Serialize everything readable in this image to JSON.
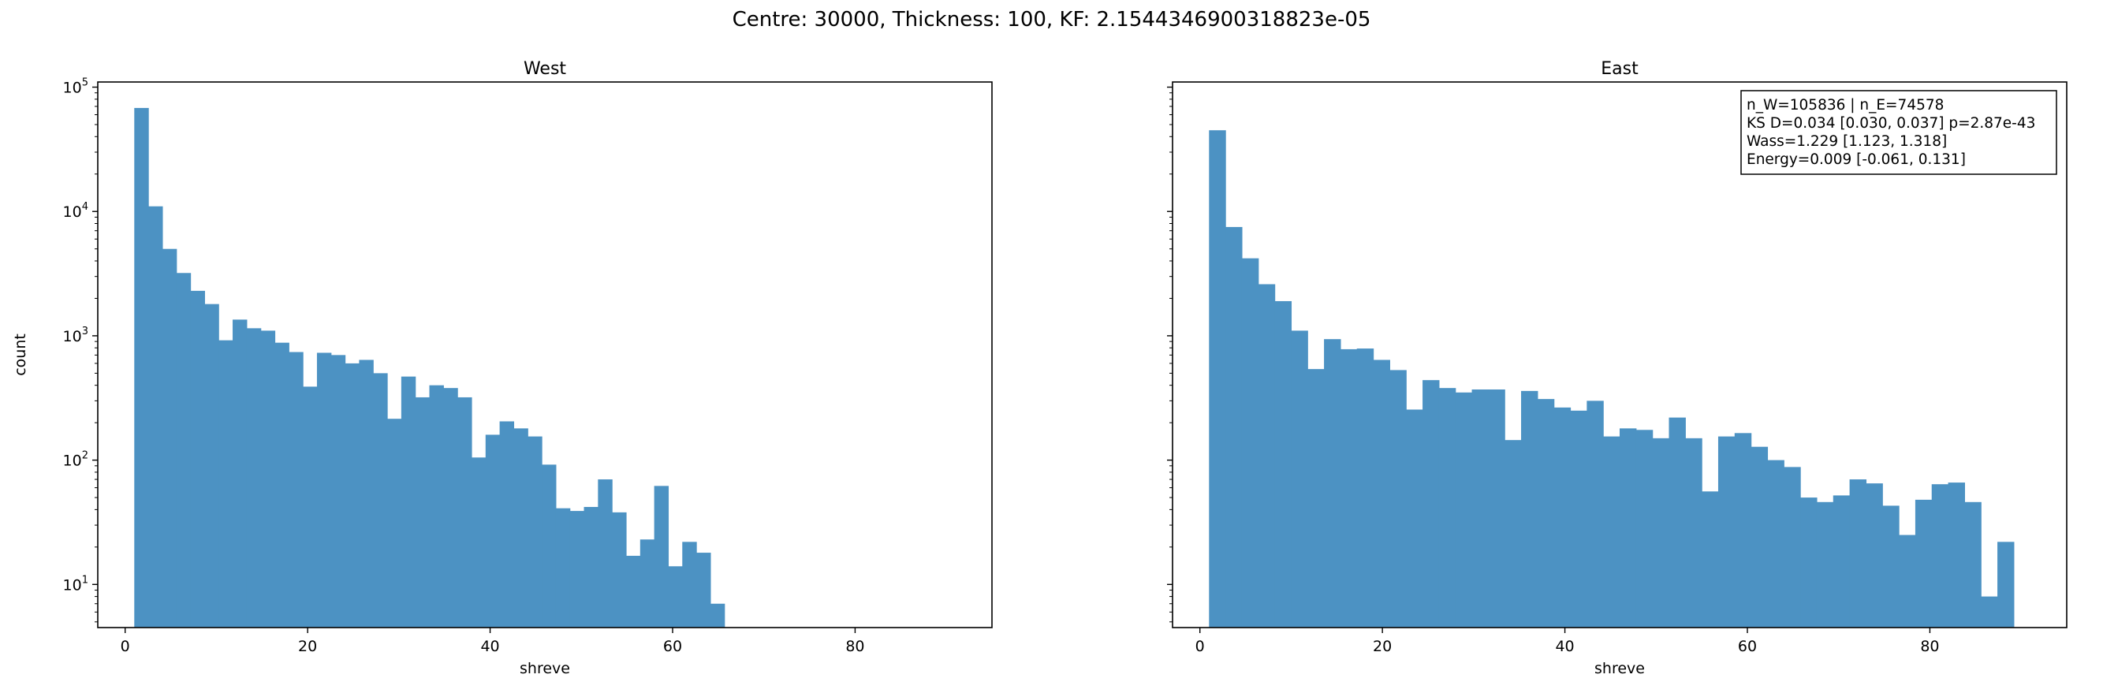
{
  "figure": {
    "suptitle": "Centre: 30000, Thickness: 100, KF: 2.1544346900318823e-05",
    "bar_color": "#4c92c3",
    "ylabel": "count"
  },
  "chart_data": [
    {
      "type": "bar",
      "title": "West",
      "xlabel": "shreve",
      "ylabel": "count",
      "yscale": "log",
      "xlim": [
        -3,
        95
      ],
      "ylim": [
        4.5,
        110000
      ],
      "xticks": [
        0,
        20,
        40,
        60,
        80
      ],
      "yticks": [
        10,
        100,
        1000,
        10000,
        100000
      ],
      "ytick_labels": [
        "10^1",
        "10^2",
        "10^3",
        "10^4",
        "10^5"
      ],
      "bin_start": 1,
      "bin_width": 1.54,
      "values": [
        68000,
        11000,
        5000,
        3200,
        2300,
        1800,
        920,
        1350,
        1150,
        1100,
        880,
        740,
        390,
        730,
        700,
        600,
        640,
        500,
        215,
        470,
        320,
        400,
        380,
        320,
        105,
        160,
        205,
        180,
        155,
        92,
        41,
        39,
        42,
        70,
        38,
        17,
        23,
        62,
        14,
        22,
        18,
        7
      ],
      "legend": null
    },
    {
      "type": "bar",
      "title": "East",
      "xlabel": "shreve",
      "yscale": "log",
      "xlim": [
        -3,
        95
      ],
      "ylim": [
        4.5,
        110000
      ],
      "xticks": [
        0,
        20,
        40,
        60,
        80
      ],
      "yticks": [
        10,
        100,
        1000,
        10000,
        100000
      ],
      "bin_start": 1,
      "bin_width": 1.8,
      "values": [
        45000,
        7500,
        4200,
        2600,
        1900,
        1100,
        540,
        940,
        780,
        790,
        640,
        530,
        255,
        440,
        380,
        350,
        370,
        370,
        145,
        360,
        310,
        265,
        250,
        300,
        155,
        180,
        175,
        150,
        220,
        150,
        56,
        155,
        165,
        128,
        100,
        88,
        50,
        46,
        52,
        70,
        65,
        43,
        25,
        48,
        64,
        66,
        46,
        8,
        22
      ],
      "annotation": [
        "n_W=105836 | n_E=74578",
        "KS D=0.034 [0.030, 0.037]  p=2.87e-43",
        "Wass=1.229 [1.123, 1.318]",
        "Energy=0.009 [-0.061, 0.131]"
      ]
    }
  ]
}
